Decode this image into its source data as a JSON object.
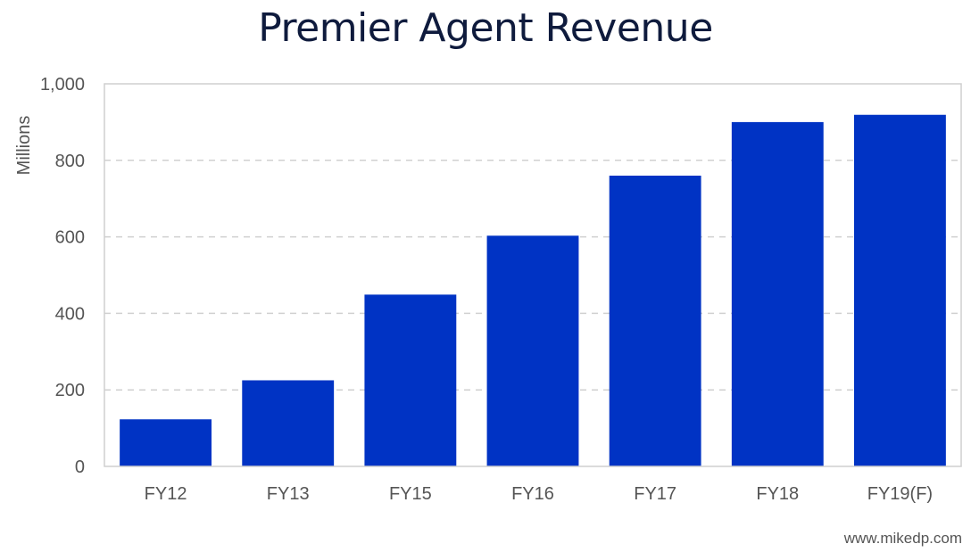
{
  "chart_data": {
    "type": "bar",
    "title": "Premier Agent Revenue",
    "xlabel": "",
    "ylabel": "Millions",
    "categories": [
      "FY12",
      "FY13",
      "FY15",
      "FY16",
      "FY17",
      "FY18",
      "FY19(F)"
    ],
    "values": [
      123,
      225,
      449,
      603,
      760,
      900,
      919
    ],
    "ylim": [
      0,
      1000
    ],
    "yticks": [
      0,
      200,
      400,
      600,
      800,
      1000
    ],
    "ytick_labels": [
      "0",
      "200",
      "400",
      "600",
      "800",
      "1,000"
    ],
    "grid": true,
    "legend": "none",
    "bar_color": "#0033c4",
    "grid_color": "#d0d0d0"
  },
  "footer": {
    "watermark": "www.mikedp.com"
  }
}
